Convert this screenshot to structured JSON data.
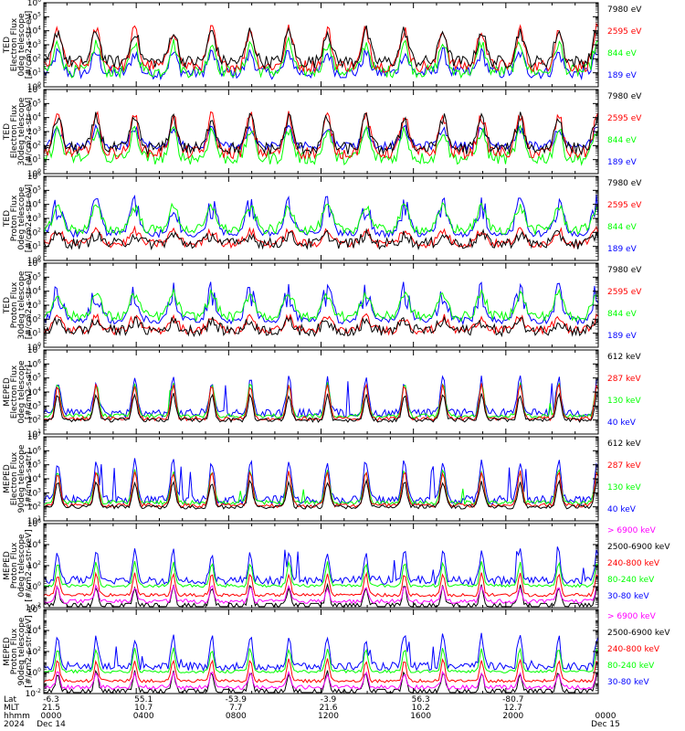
{
  "colors": {
    "black": "#000000",
    "red": "#ff0000",
    "green": "#00ff00",
    "blue": "#0000ff",
    "magenta": "#ff00ff"
  },
  "chart_data": {
    "type": "line",
    "time_axis": {
      "row_labels": [
        "Lat",
        "MLT",
        "hhmm",
        "2024"
      ],
      "columns": [
        {
          "lat": "-6.3",
          "mlt": "21.5",
          "hhmm": "0000",
          "date": "Dec 14"
        },
        {
          "lat": "55.1",
          "mlt": "10.7",
          "hhmm": "0400",
          "date": ""
        },
        {
          "lat": "-53.9",
          "mlt": "7.7",
          "hhmm": "0800",
          "date": ""
        },
        {
          "lat": "-3.9",
          "mlt": "21.6",
          "hhmm": "1200",
          "date": ""
        },
        {
          "lat": "56.3",
          "mlt": "10.2",
          "hhmm": "1600",
          "date": ""
        },
        {
          "lat": "-80.7",
          "mlt": "12.7",
          "hhmm": "2000",
          "date": ""
        },
        {
          "lat": "",
          "mlt": "",
          "hhmm": "0000",
          "date": "Dec 15"
        }
      ]
    },
    "panels": [
      {
        "ylabel": [
          "TED",
          "Electron Flux",
          "0deg telescope",
          "[#/cm2-s-str-eV]"
        ],
        "ytick_exps": [
          "0",
          "1",
          "2",
          "3",
          "4",
          "5",
          "6"
        ],
        "ylim_log10": [
          0,
          6
        ],
        "legend": [
          {
            "label": "7980 eV",
            "color": "#000000"
          },
          {
            "label": "2595 eV",
            "color": "#ff0000"
          },
          {
            "label": "844 eV",
            "color": "#00ff00"
          },
          {
            "label": "189 eV",
            "color": "#0000ff"
          }
        ]
      },
      {
        "ylabel": [
          "TED",
          "Electron Flux",
          "30deg telescope",
          "[#/cm2-s-str-eV]"
        ],
        "ytick_exps": [
          "0",
          "1",
          "2",
          "3",
          "4",
          "5",
          "6"
        ],
        "ylim_log10": [
          0,
          6
        ],
        "legend": [
          {
            "label": "7980 eV",
            "color": "#000000"
          },
          {
            "label": "2595 eV",
            "color": "#ff0000"
          },
          {
            "label": "844 eV",
            "color": "#00ff00"
          },
          {
            "label": "189 eV",
            "color": "#0000ff"
          }
        ]
      },
      {
        "ylabel": [
          "TED",
          "Proton Flux",
          "0deg telescope",
          "[#/cm2-s-str-eV]"
        ],
        "ytick_exps": [
          "0",
          "1",
          "2",
          "3",
          "4",
          "5",
          "6"
        ],
        "ylim_log10": [
          0,
          6
        ],
        "legend": [
          {
            "label": "7980 eV",
            "color": "#000000"
          },
          {
            "label": "2595 eV",
            "color": "#ff0000"
          },
          {
            "label": "844 eV",
            "color": "#00ff00"
          },
          {
            "label": "189 eV",
            "color": "#0000ff"
          }
        ]
      },
      {
        "ylabel": [
          "TED",
          "Proton Flux",
          "30deg telescope",
          "[#/cm2-s-str-eV]"
        ],
        "ytick_exps": [
          "0",
          "1",
          "2",
          "3",
          "4",
          "5",
          "6"
        ],
        "ylim_log10": [
          0,
          6
        ],
        "legend": [
          {
            "label": "7980 eV",
            "color": "#000000"
          },
          {
            "label": "2595 eV",
            "color": "#ff0000"
          },
          {
            "label": "844 eV",
            "color": "#00ff00"
          },
          {
            "label": "189 eV",
            "color": "#0000ff"
          }
        ]
      },
      {
        "ylabel": [
          "MEPED",
          "Electron Flux",
          "0deg telescope",
          "[#/cm2-s-str]"
        ],
        "ytick_exps": [
          "1",
          "2",
          "3",
          "4",
          "5",
          "6",
          "7"
        ],
        "ylim_log10": [
          1,
          7
        ],
        "legend": [
          {
            "label": "612 keV",
            "color": "#000000"
          },
          {
            "label": "287 keV",
            "color": "#ff0000"
          },
          {
            "label": "130 keV",
            "color": "#00ff00"
          },
          {
            "label": "40 keV",
            "color": "#0000ff"
          }
        ]
      },
      {
        "ylabel": [
          "MEPED",
          "Electron Flux",
          "90deg telescope",
          "[#/cm2-s-str]"
        ],
        "ytick_exps": [
          "1",
          "2",
          "3",
          "4",
          "5",
          "6",
          "7"
        ],
        "ylim_log10": [
          1,
          7
        ],
        "legend": [
          {
            "label": "612 keV",
            "color": "#000000"
          },
          {
            "label": "287 keV",
            "color": "#ff0000"
          },
          {
            "label": "130 keV",
            "color": "#00ff00"
          },
          {
            "label": "40 keV",
            "color": "#0000ff"
          }
        ]
      },
      {
        "ylabel": [
          "MEPED",
          "Proton Flux",
          "0deg telescope",
          "[#/cm2-s-str-keV]"
        ],
        "ytick_exps": [
          "-2",
          "0",
          "2",
          "4",
          "6"
        ],
        "ylim_log10": [
          -2,
          6
        ],
        "legend": [
          {
            "label": "> 6900 keV",
            "color": "#ff00ff"
          },
          {
            "label": "2500-6900 keV",
            "color": "#000000"
          },
          {
            "label": "240-800 keV",
            "color": "#ff0000"
          },
          {
            "label": "80-240 keV",
            "color": "#00ff00"
          },
          {
            "label": "30-80 keV",
            "color": "#0000ff"
          }
        ]
      },
      {
        "ylabel": [
          "MEPED",
          "Proton Flux",
          "90deg telescope",
          "[#/cm2-s-str-keV]"
        ],
        "ytick_exps": [
          "-2",
          "0",
          "2",
          "4",
          "6"
        ],
        "ylim_log10": [
          -2,
          6
        ],
        "legend": [
          {
            "label": "> 6900 keV",
            "color": "#ff00ff"
          },
          {
            "label": "2500-6900 keV",
            "color": "#000000"
          },
          {
            "label": "240-800 keV",
            "color": "#ff0000"
          },
          {
            "label": "80-240 keV",
            "color": "#00ff00"
          },
          {
            "label": "30-80 keV",
            "color": "#0000ff"
          }
        ]
      }
    ]
  }
}
